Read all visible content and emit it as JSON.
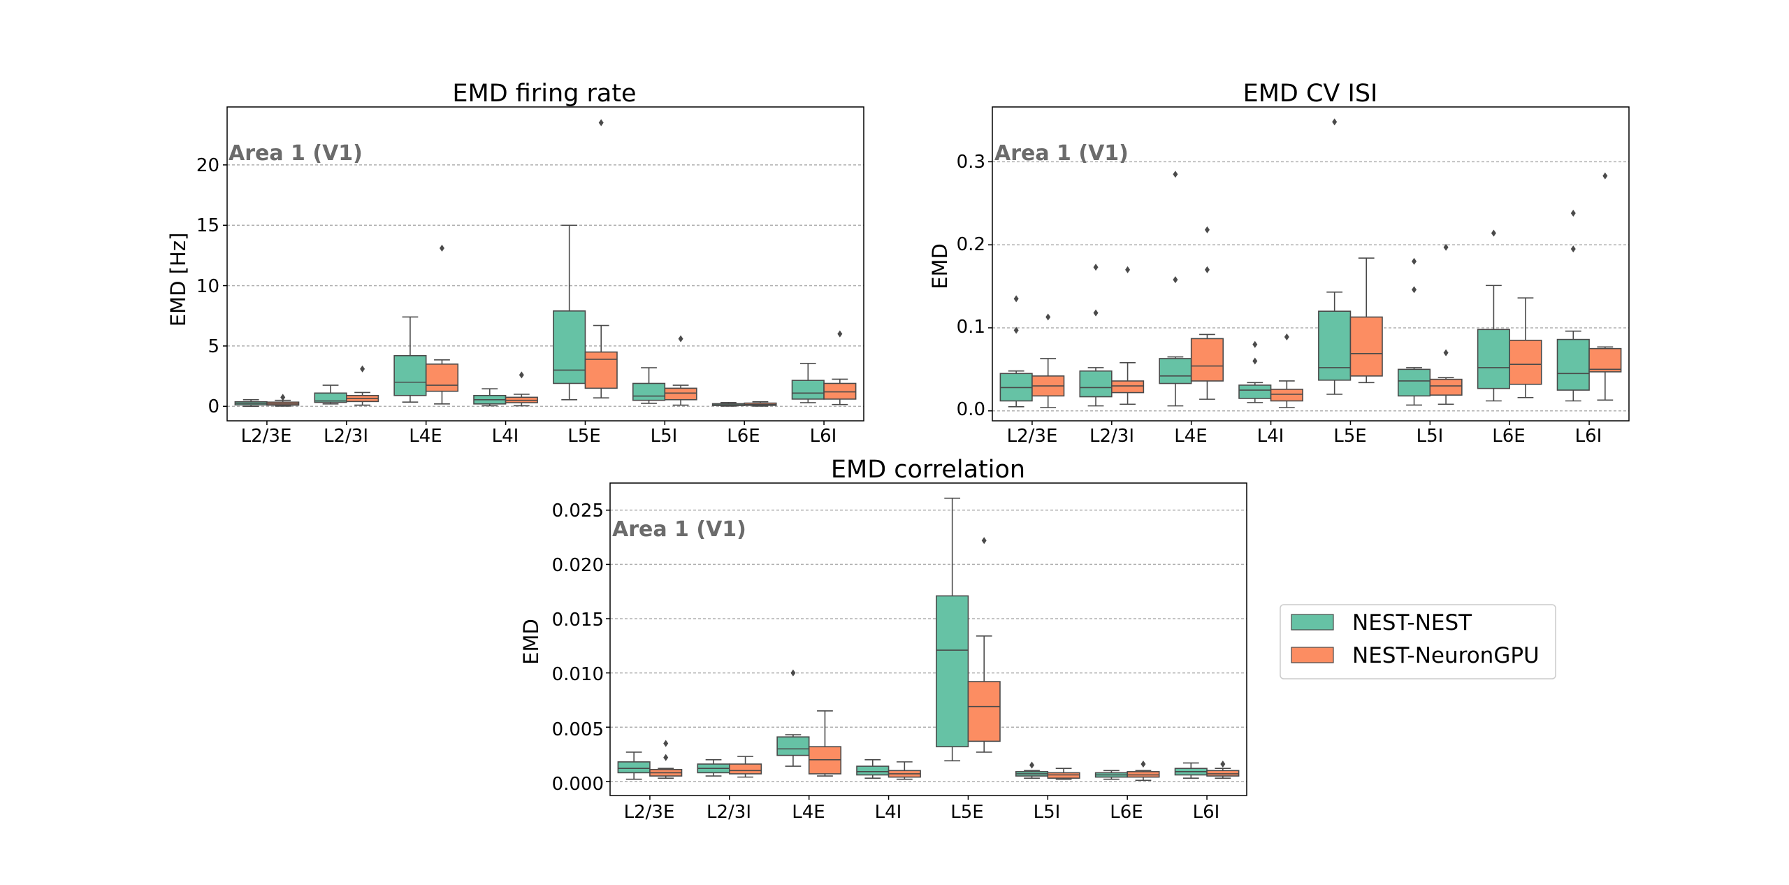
{
  "chart_data": [
    {
      "type": "box",
      "title": "EMD firing rate",
      "ylabel": "EMD [Hz]",
      "annotation": "Area 1 (V1)",
      "categories": [
        "L2/3E",
        "L2/3I",
        "L4E",
        "L4I",
        "L5E",
        "L5I",
        "L6E",
        "L6I"
      ],
      "ylim": [
        -1.2,
        24.8
      ],
      "yticks": [
        0,
        5,
        10,
        15,
        20
      ],
      "yticklabels": [
        "0",
        "5",
        "10",
        "15",
        "20"
      ],
      "grid": "y-dashed",
      "series": [
        {
          "name": "NEST-NEST",
          "color": "#66c2a5",
          "boxes": [
            {
              "whislo": 0.0,
              "q1": 0.12,
              "med": 0.25,
              "q3": 0.38,
              "whishi": 0.55,
              "fliers": []
            },
            {
              "whislo": 0.2,
              "q1": 0.33,
              "med": 0.45,
              "q3": 1.1,
              "whishi": 1.75,
              "fliers": []
            },
            {
              "whislo": 0.35,
              "q1": 0.9,
              "med": 2.0,
              "q3": 4.2,
              "whishi": 7.4,
              "fliers": []
            },
            {
              "whislo": 0.05,
              "q1": 0.2,
              "med": 0.55,
              "q3": 0.9,
              "whishi": 1.45,
              "fliers": []
            },
            {
              "whislo": 0.55,
              "q1": 1.9,
              "med": 3.0,
              "q3": 7.9,
              "whishi": 15.0,
              "fliers": []
            },
            {
              "whislo": 0.25,
              "q1": 0.5,
              "med": 0.85,
              "q3": 1.9,
              "whishi": 3.2,
              "fliers": []
            },
            {
              "whislo": 0.02,
              "q1": 0.07,
              "med": 0.12,
              "q3": 0.22,
              "whishi": 0.32,
              "fliers": []
            },
            {
              "whislo": 0.3,
              "q1": 0.6,
              "med": 1.1,
              "q3": 2.15,
              "whishi": 3.55,
              "fliers": []
            }
          ]
        },
        {
          "name": "NEST-NeuronGPU",
          "color": "#fc8d62",
          "boxes": [
            {
              "whislo": 0.02,
              "q1": 0.1,
              "med": 0.2,
              "q3": 0.35,
              "whishi": 0.5,
              "fliers": [
                0.75
              ]
            },
            {
              "whislo": 0.1,
              "q1": 0.4,
              "med": 0.65,
              "q3": 0.9,
              "whishi": 1.15,
              "fliers": [
                3.1
              ]
            },
            {
              "whislo": 0.2,
              "q1": 1.25,
              "med": 1.75,
              "q3": 3.5,
              "whishi": 3.85,
              "fliers": [
                13.1
              ]
            },
            {
              "whislo": 0.05,
              "q1": 0.3,
              "med": 0.5,
              "q3": 0.75,
              "whishi": 1.0,
              "fliers": [
                2.6
              ]
            },
            {
              "whislo": 0.7,
              "q1": 1.5,
              "med": 3.9,
              "q3": 4.5,
              "whishi": 6.7,
              "fliers": [
                23.5
              ]
            },
            {
              "whislo": 0.1,
              "q1": 0.55,
              "med": 1.1,
              "q3": 1.5,
              "whishi": 1.75,
              "fliers": [
                5.6
              ]
            },
            {
              "whislo": 0.02,
              "q1": 0.08,
              "med": 0.15,
              "q3": 0.27,
              "whishi": 0.38,
              "fliers": []
            },
            {
              "whislo": 0.15,
              "q1": 0.6,
              "med": 1.2,
              "q3": 1.9,
              "whishi": 2.25,
              "fliers": [
                6.0
              ]
            }
          ]
        }
      ]
    },
    {
      "type": "box",
      "title": "EMD CV ISI",
      "ylabel": "EMD",
      "annotation": "Area 1 (V1)",
      "categories": [
        "L2/3E",
        "L2/3I",
        "L4E",
        "L4I",
        "L5E",
        "L5I",
        "L6E",
        "L6I"
      ],
      "ylim": [
        -0.012,
        0.366
      ],
      "yticks": [
        0.0,
        0.1,
        0.2,
        0.3
      ],
      "yticklabels": [
        "0.0",
        "0.1",
        "0.2",
        "0.3"
      ],
      "grid": "y-dashed",
      "series": [
        {
          "name": "NEST-NEST",
          "color": "#66c2a5",
          "boxes": [
            {
              "whislo": 0.005,
              "q1": 0.012,
              "med": 0.028,
              "q3": 0.045,
              "whishi": 0.048,
              "fliers": [
                0.097,
                0.135
              ]
            },
            {
              "whislo": 0.006,
              "q1": 0.017,
              "med": 0.028,
              "q3": 0.048,
              "whishi": 0.052,
              "fliers": [
                0.118,
                0.173
              ]
            },
            {
              "whislo": 0.006,
              "q1": 0.033,
              "med": 0.042,
              "q3": 0.063,
              "whishi": 0.065,
              "fliers": [
                0.158,
                0.285
              ]
            },
            {
              "whislo": 0.01,
              "q1": 0.015,
              "med": 0.025,
              "q3": 0.031,
              "whishi": 0.034,
              "fliers": [
                0.06,
                0.08
              ]
            },
            {
              "whislo": 0.02,
              "q1": 0.037,
              "med": 0.052,
              "q3": 0.12,
              "whishi": 0.143,
              "fliers": [
                0.348
              ]
            },
            {
              "whislo": 0.007,
              "q1": 0.018,
              "med": 0.036,
              "q3": 0.05,
              "whishi": 0.052,
              "fliers": [
                0.146,
                0.18
              ]
            },
            {
              "whislo": 0.012,
              "q1": 0.027,
              "med": 0.052,
              "q3": 0.098,
              "whishi": 0.151,
              "fliers": [
                0.214
              ]
            },
            {
              "whislo": 0.012,
              "q1": 0.025,
              "med": 0.045,
              "q3": 0.086,
              "whishi": 0.096,
              "fliers": [
                0.195,
                0.238
              ]
            }
          ]
        },
        {
          "name": "NEST-NeuronGPU",
          "color": "#fc8d62",
          "boxes": [
            {
              "whislo": 0.004,
              "q1": 0.018,
              "med": 0.03,
              "q3": 0.042,
              "whishi": 0.063,
              "fliers": [
                0.113
              ]
            },
            {
              "whislo": 0.008,
              "q1": 0.022,
              "med": 0.03,
              "q3": 0.036,
              "whishi": 0.058,
              "fliers": [
                0.17
              ]
            },
            {
              "whislo": 0.014,
              "q1": 0.036,
              "med": 0.054,
              "q3": 0.087,
              "whishi": 0.092,
              "fliers": [
                0.17,
                0.218
              ]
            },
            {
              "whislo": 0.004,
              "q1": 0.012,
              "med": 0.02,
              "q3": 0.026,
              "whishi": 0.036,
              "fliers": [
                0.089
              ]
            },
            {
              "whislo": 0.034,
              "q1": 0.042,
              "med": 0.069,
              "q3": 0.113,
              "whishi": 0.184,
              "fliers": []
            },
            {
              "whislo": 0.008,
              "q1": 0.019,
              "med": 0.03,
              "q3": 0.038,
              "whishi": 0.04,
              "fliers": [
                0.07,
                0.197
              ]
            },
            {
              "whislo": 0.016,
              "q1": 0.032,
              "med": 0.056,
              "q3": 0.085,
              "whishi": 0.136,
              "fliers": []
            },
            {
              "whislo": 0.013,
              "q1": 0.047,
              "med": 0.05,
              "q3": 0.075,
              "whishi": 0.077,
              "fliers": [
                0.283
              ]
            }
          ]
        }
      ]
    },
    {
      "type": "box",
      "title": "EMD correlation",
      "ylabel": "EMD",
      "annotation": "Area 1 (V1)",
      "categories": [
        "L2/3E",
        "L2/3I",
        "L4E",
        "L4I",
        "L5E",
        "L5I",
        "L6E",
        "L6I"
      ],
      "ylim": [
        -0.0013,
        0.0275
      ],
      "yticks": [
        0.0,
        0.005,
        0.01,
        0.015,
        0.02,
        0.025
      ],
      "yticklabels": [
        "0.000",
        "0.005",
        "0.010",
        "0.015",
        "0.020",
        "0.025"
      ],
      "grid": "y-dashed",
      "series": [
        {
          "name": "NEST-NEST",
          "color": "#66c2a5",
          "boxes": [
            {
              "whislo": 0.0002,
              "q1": 0.0008,
              "med": 0.0012,
              "q3": 0.0018,
              "whishi": 0.0027,
              "fliers": []
            },
            {
              "whislo": 0.0005,
              "q1": 0.0008,
              "med": 0.0012,
              "q3": 0.0016,
              "whishi": 0.002,
              "fliers": []
            },
            {
              "whislo": 0.0014,
              "q1": 0.0024,
              "med": 0.003,
              "q3": 0.0041,
              "whishi": 0.0043,
              "fliers": [
                0.01
              ]
            },
            {
              "whislo": 0.0003,
              "q1": 0.0006,
              "med": 0.0009,
              "q3": 0.0014,
              "whishi": 0.002,
              "fliers": []
            },
            {
              "whislo": 0.0019,
              "q1": 0.0032,
              "med": 0.0121,
              "q3": 0.0171,
              "whishi": 0.0261,
              "fliers": []
            },
            {
              "whislo": 0.0003,
              "q1": 0.0005,
              "med": 0.0007,
              "q3": 0.0009,
              "whishi": 0.001,
              "fliers": [
                0.0015
              ]
            },
            {
              "whislo": 0.0002,
              "q1": 0.0004,
              "med": 0.0006,
              "q3": 0.0008,
              "whishi": 0.001,
              "fliers": []
            },
            {
              "whislo": 0.0003,
              "q1": 0.0006,
              "med": 0.0009,
              "q3": 0.0012,
              "whishi": 0.0017,
              "fliers": []
            }
          ]
        },
        {
          "name": "NEST-NeuronGPU",
          "color": "#fc8d62",
          "boxes": [
            {
              "whislo": 0.0003,
              "q1": 0.0005,
              "med": 0.0008,
              "q3": 0.0011,
              "whishi": 0.0012,
              "fliers": [
                0.0022,
                0.0035
              ]
            },
            {
              "whislo": 0.0004,
              "q1": 0.0007,
              "med": 0.001,
              "q3": 0.0016,
              "whishi": 0.0023,
              "fliers": []
            },
            {
              "whislo": 0.0005,
              "q1": 0.0007,
              "med": 0.002,
              "q3": 0.0032,
              "whishi": 0.0065,
              "fliers": []
            },
            {
              "whislo": 0.0002,
              "q1": 0.0004,
              "med": 0.0007,
              "q3": 0.001,
              "whishi": 0.0018,
              "fliers": []
            },
            {
              "whislo": 0.0027,
              "q1": 0.0037,
              "med": 0.0069,
              "q3": 0.0092,
              "whishi": 0.0134,
              "fliers": [
                0.0222
              ]
            },
            {
              "whislo": 0.0002,
              "q1": 0.0003,
              "med": 0.0006,
              "q3": 0.0008,
              "whishi": 0.0012,
              "fliers": []
            },
            {
              "whislo": 0.0001,
              "q1": 0.0004,
              "med": 0.0006,
              "q3": 0.0009,
              "whishi": 0.001,
              "fliers": [
                0.0016
              ]
            },
            {
              "whislo": 0.0003,
              "q1": 0.0005,
              "med": 0.0007,
              "q3": 0.001,
              "whishi": 0.0012,
              "fliers": [
                0.0016
              ]
            }
          ]
        }
      ]
    }
  ],
  "legend": {
    "placement": "right of bottom panel",
    "entries": [
      {
        "label": "NEST-NEST",
        "color": "#66c2a5"
      },
      {
        "label": "NEST-NeuronGPU",
        "color": "#fc8d62"
      }
    ]
  }
}
